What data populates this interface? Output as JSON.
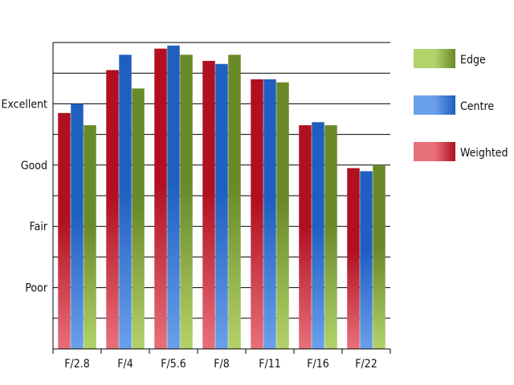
{
  "chart_data": {
    "type": "bar",
    "categories": [
      "F/2.8",
      "F/4",
      "F/5.6",
      "F/8",
      "F/11",
      "F/16",
      "F/22"
    ],
    "y_tick_labels": [
      {
        "label": "Poor",
        "value": 2
      },
      {
        "label": "Fair",
        "value": 4
      },
      {
        "label": "Good",
        "value": 6
      },
      {
        "label": "Excellent",
        "value": 8
      }
    ],
    "ylim": [
      0,
      10
    ],
    "grid": true,
    "legend_position": "right",
    "series": [
      {
        "name": "Weighted",
        "values": [
          7.7,
          9.1,
          9.8,
          9.4,
          8.8,
          7.3,
          5.9
        ],
        "color_light": "#e8707a",
        "color_dark": "#b01020"
      },
      {
        "name": "Centre",
        "values": [
          8.0,
          9.6,
          9.9,
          9.3,
          8.8,
          7.4,
          5.8
        ],
        "color_light": "#6aa0ea",
        "color_dark": "#1f5fc0"
      },
      {
        "name": "Edge",
        "values": [
          7.3,
          8.5,
          9.6,
          9.6,
          8.7,
          7.3,
          6.0
        ],
        "color_light": "#b2d26a",
        "color_dark": "#6a8a2a"
      }
    ],
    "legend_order": [
      "Edge",
      "Centre",
      "Weighted"
    ]
  }
}
